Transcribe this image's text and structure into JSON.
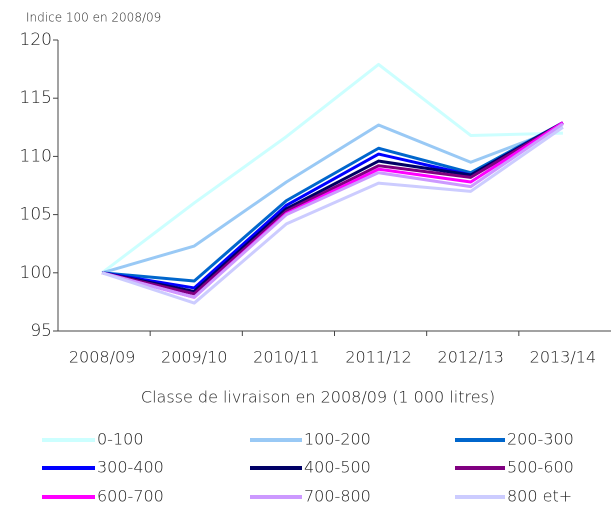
{
  "chart_data": {
    "type": "line",
    "subtitle": "Indice 100 en 2008/09",
    "x_label": "Classe de livraison en 2008/09 (1 000 litres)",
    "categories": [
      "2008/09",
      "2009/10",
      "2010/11",
      "2011/12",
      "2012/13",
      "2013/14"
    ],
    "series": [
      {
        "name": "0-100",
        "color": "#ccffff",
        "values": [
          100,
          106,
          111.7,
          117.9,
          111.8,
          112
        ]
      },
      {
        "name": "100-200",
        "color": "#99c9f5",
        "values": [
          100,
          102.3,
          107.8,
          112.7,
          109.5,
          112.5
        ]
      },
      {
        "name": "200-300",
        "color": "#0066cc",
        "values": [
          100,
          99.3,
          106.2,
          110.7,
          108.6,
          112.9
        ]
      },
      {
        "name": "300-400",
        "color": "#0000ff",
        "values": [
          100,
          98.7,
          105.8,
          110.2,
          108.4,
          112.9
        ]
      },
      {
        "name": "400-500",
        "color": "#000066",
        "values": [
          100,
          98.4,
          105.5,
          109.6,
          108.4,
          112.9
        ]
      },
      {
        "name": "500-600",
        "color": "#800080",
        "values": [
          100,
          98.2,
          105.3,
          109.2,
          108.2,
          112.9
        ]
      },
      {
        "name": "600-700",
        "color": "#ff00ff",
        "values": [
          100,
          97.9,
          105.1,
          108.9,
          107.8,
          112.9
        ]
      },
      {
        "name": "700-800",
        "color": "#cc99ff",
        "values": [
          100,
          97.9,
          105.0,
          108.6,
          107.4,
          112.8
        ]
      },
      {
        "name": "800 et+",
        "color": "#ccccff",
        "values": [
          100,
          97.4,
          104.2,
          107.7,
          107.0,
          112.5
        ]
      }
    ],
    "ylim": [
      95,
      120
    ],
    "yticks": [
      95,
      100,
      105,
      110,
      115,
      120
    ],
    "grid": false,
    "legend": "bottom"
  }
}
